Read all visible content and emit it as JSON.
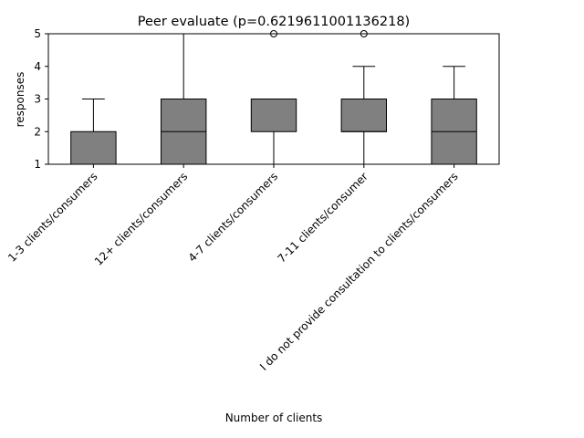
{
  "chart_data": {
    "type": "box",
    "title": "Peer evaluate (p=0.6219611001136218)",
    "xlabel": "Number of clients",
    "ylabel": "responses",
    "ylim": [
      1,
      5
    ],
    "yticks": [
      1,
      2,
      3,
      4,
      5
    ],
    "grid": false,
    "box_color": "#808080",
    "categories": [
      "1-3 clients/consumers",
      "12+ clients/consumers",
      "4-7 clients/consumers",
      "7-11 clients/consumer",
      "I do not provide consultation to clients/consumers"
    ],
    "boxes": [
      {
        "whisker_low": 1,
        "q1": 1,
        "median": 1,
        "q3": 2,
        "whisker_high": 3,
        "outliers": []
      },
      {
        "whisker_low": 1,
        "q1": 1,
        "median": 2,
        "q3": 3,
        "whisker_high": 5,
        "outliers": []
      },
      {
        "whisker_low": 1,
        "q1": 2,
        "median": 3,
        "q3": 3,
        "whisker_high": 3,
        "outliers": [
          5
        ]
      },
      {
        "whisker_low": 1,
        "q1": 2,
        "median": 2,
        "q3": 3,
        "whisker_high": 4,
        "outliers": [
          5
        ]
      },
      {
        "whisker_low": 1,
        "q1": 1,
        "median": 2,
        "q3": 3,
        "whisker_high": 4,
        "outliers": []
      }
    ]
  }
}
